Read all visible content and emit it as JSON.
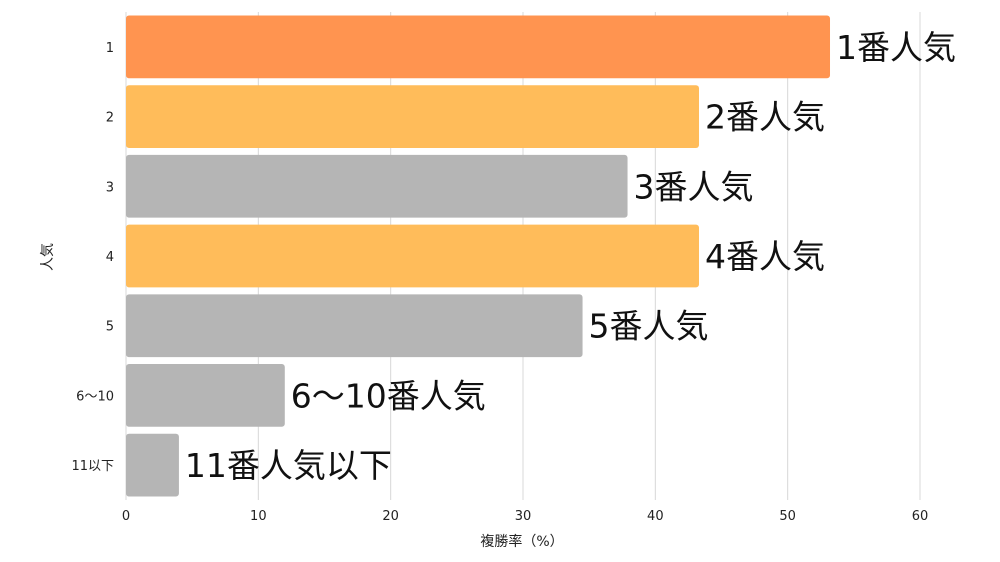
{
  "chart_data": {
    "type": "bar",
    "orientation": "horizontal",
    "categories": [
      "1",
      "2",
      "3",
      "4",
      "5",
      "6〜10",
      "11以下"
    ],
    "values": [
      53.2,
      43.3,
      37.9,
      43.3,
      34.5,
      12.0,
      4.0
    ],
    "bar_labels": [
      "1番人気",
      "2番人気",
      "3番人気",
      "4番人気",
      "5番人気",
      "6〜10番人気",
      "11番人気以下"
    ],
    "bar_colors": [
      "#FF9450",
      "#FFBC5A",
      "#B5B5B5",
      "#FFBC5A",
      "#B5B5B5",
      "#B5B5B5",
      "#B5B5B5"
    ],
    "xlabel": "複勝率（%）",
    "ylabel": "人気",
    "xlim": [
      0,
      60
    ],
    "xticks": [
      "0",
      "10",
      "20",
      "30",
      "40",
      "50",
      "60"
    ],
    "grid": true,
    "grid_color": "#D8D8D8"
  }
}
